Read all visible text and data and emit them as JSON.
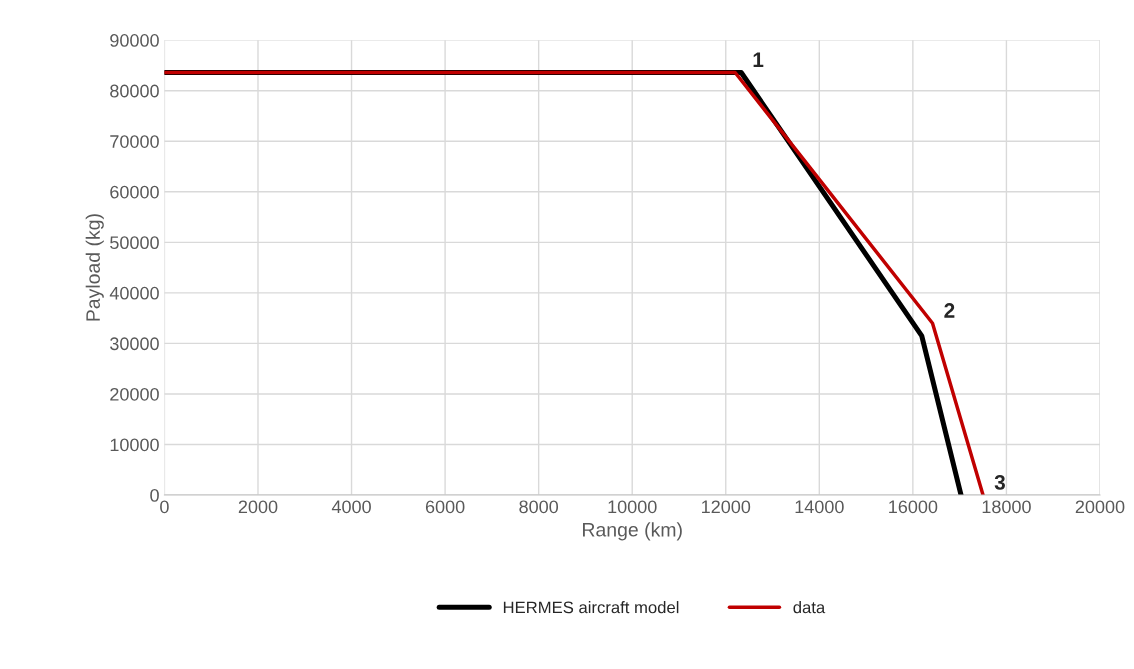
{
  "chart_data": {
    "type": "line",
    "xlabel": "Range (km)",
    "ylabel": "Payload (kg)",
    "xlim": [
      0,
      20000
    ],
    "xticks": [
      0,
      2000,
      4000,
      6000,
      8000,
      10000,
      12000,
      14000,
      16000,
      18000,
      20000
    ],
    "ylim": [
      0,
      90000
    ],
    "yticks": [
      0,
      10000,
      20000,
      30000,
      40000,
      50000,
      60000,
      70000,
      80000,
      90000
    ],
    "grid": true,
    "legend": "bottom",
    "marker": "none",
    "line_style": "solid",
    "series": [
      {
        "name": "HERMES aircraft model",
        "color": "#000000",
        "x": [
          0,
          12330,
          16190,
          17030
        ],
        "values": [
          83600,
          83600,
          31500,
          0
        ]
      },
      {
        "name": "data",
        "color": "#c00000",
        "x": [
          0,
          12200,
          16420,
          17500
        ],
        "values": [
          83600,
          83600,
          34000,
          0
        ]
      }
    ],
    "annotations": [
      {
        "text": "1",
        "x": 12330,
        "y": 83600
      },
      {
        "text": "2",
        "x": 16420,
        "y": 34000
      },
      {
        "text": "3",
        "x": 17500,
        "y": 0
      }
    ]
  }
}
